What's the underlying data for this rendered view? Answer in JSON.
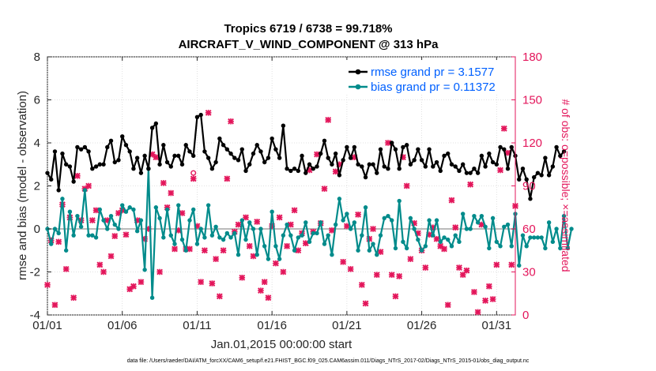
{
  "chart_data": {
    "type": "line",
    "title": "Tropics 6719 / 6738 = 99.718%",
    "subtitle": "AIRCRAFT_V_WIND_COMPONENT @ 313 hPa",
    "xlabel": "Jan.01,2015 00:00:00 start",
    "ylabel": "rmse and bias (model - observation)",
    "y2label": "# of obs: o=possible; ×=assimilated",
    "x_ticks": [
      "01/01",
      "01/06",
      "01/11",
      "01/16",
      "01/21",
      "01/26",
      "01/31"
    ],
    "x_tick_days": [
      0,
      5,
      10,
      15,
      20,
      25,
      30
    ],
    "xlim": [
      0,
      31.25
    ],
    "ylim": [
      -4,
      8
    ],
    "y_ticks": [
      "-4",
      "-2",
      "0",
      "2",
      "4",
      "6",
      "8"
    ],
    "y2lim": [
      0,
      180
    ],
    "y2_ticks": [
      "0",
      "30",
      "60",
      "90",
      "120",
      "150",
      "180"
    ],
    "step_days": 0.25,
    "zero_line": 0,
    "series": [
      {
        "name": "rmse grand pr = 3.1577",
        "axis": "left",
        "color": "#000000",
        "values": [
          2.6,
          2.3,
          3.6,
          1.8,
          3.5,
          3.0,
          2.9,
          2.2,
          3.8,
          3.7,
          3.8,
          3.6,
          2.8,
          2.9,
          3.0,
          3.0,
          3.8,
          4.1,
          3.1,
          3.2,
          4.3,
          3.9,
          3.6,
          2.8,
          3.3,
          2.6,
          3.4,
          2.8,
          4.7,
          4.9,
          3.0,
          3.9,
          3.1,
          2.9,
          3.4,
          3.4,
          3.0,
          3.9,
          3.6,
          3.4,
          5.2,
          5.3,
          3.6,
          3.3,
          2.8,
          3.1,
          4.2,
          3.9,
          3.7,
          3.5,
          3.3,
          3.2,
          3.7,
          2.7,
          3.0,
          3.5,
          3.9,
          3.6,
          3.1,
          3.3,
          4.2,
          3.7,
          3.3,
          4.8,
          2.8,
          2.7,
          2.8,
          2.7,
          3.4,
          2.6,
          3.0,
          2.8,
          2.9,
          3.5,
          4.1,
          3.3,
          3.0,
          3.5,
          2.5,
          3.2,
          3.8,
          3.3,
          3.8,
          3.0,
          2.9,
          2.4,
          3.0,
          3.0,
          2.6,
          3.7,
          2.9,
          2.8,
          4.0,
          3.7,
          2.8,
          3.8,
          3.9,
          3.0,
          3.2,
          3.7,
          3.2,
          2.9,
          3.7,
          2.9,
          3.1,
          2.7,
          3.4,
          3.5,
          3.0,
          2.9,
          2.7,
          3.0,
          2.6,
          2.6,
          2.8,
          2.6,
          3.4,
          2.9,
          3.5,
          3.1,
          3.0,
          3.8,
          3.7,
          2.8,
          3.8,
          3.4,
          2.3,
          2.8,
          2.3,
          1.4,
          2.4,
          2.6,
          2.5,
          3.3,
          2.5,
          2.9,
          3.8,
          3.4,
          3.6
        ]
      },
      {
        "name": "bias grand pr = 0.11372",
        "axis": "left",
        "color": "#008b8b",
        "values": [
          0.0,
          -0.7,
          0.0,
          -0.2,
          1.4,
          -1.0,
          0.8,
          -0.3,
          0.6,
          0.1,
          1.8,
          -0.3,
          -0.3,
          -0.4,
          0.9,
          0.4,
          0.0,
          0.6,
          0.2,
          0.0,
          1.1,
          0.8,
          1.0,
          0.9,
          -0.1,
          0.4,
          -1.9,
          2.8,
          -3.2,
          1.0,
          0.5,
          -0.4,
          0.9,
          -0.3,
          -0.7,
          1.1,
          -0.5,
          -1.0,
          0.4,
          0.9,
          -0.7,
          0.0,
          -0.4,
          1.1,
          -0.3,
          0.1,
          -0.4,
          -0.5,
          -0.2,
          -0.4,
          -0.2,
          -1.2,
          0.4,
          -0.5,
          0.3,
          0.0,
          -1.2,
          0.0,
          -0.8,
          -1.4,
          0.8,
          -0.8,
          -1.4,
          -0.3,
          0.2,
          -0.3,
          -1.0,
          -0.4,
          -0.3,
          0.3,
          -0.6,
          -0.2,
          -0.2,
          0.3,
          -0.7,
          -0.3,
          -1.2,
          0.2,
          1.4,
          0.4,
          0.7,
          0.0,
          0.3,
          -1.0,
          -0.3,
          1.0,
          -1.0,
          -0.7,
          -1.2,
          -0.3,
          0.5,
          0.6,
          0.4,
          -0.9,
          1.3,
          -0.6,
          -0.9,
          0.5,
          0.0,
          -0.5,
          -1.0,
          -0.8,
          0.4,
          -0.3,
          0.4,
          -0.6,
          -0.4,
          -0.5,
          -0.8,
          -0.3,
          -0.6,
          0.7,
          0.0,
          0.0,
          0.6,
          0.3,
          0.6,
          0.1,
          -0.9,
          0.5,
          -0.6,
          -0.8,
          0.1,
          0.2,
          -0.8,
          0.7,
          -1.7,
          -0.3,
          -0.8,
          -0.4,
          -0.4,
          -0.4,
          -0.4,
          -0.9,
          0.3,
          -0.6,
          0.0,
          -0.9,
          0.6,
          -0.9,
          0.0
        ]
      },
      {
        "name": "obs possible",
        "axis": "right",
        "color": "#e3165b",
        "marker": "o",
        "points": [
          [
            9.75,
            99
          ]
        ]
      },
      {
        "name": "obs assimilated",
        "axis": "right",
        "color": "#e3165b",
        "marker": "x",
        "points": [
          [
            0.0,
            21
          ],
          [
            0.25,
            52
          ],
          [
            0.5,
            7
          ],
          [
            0.75,
            51
          ],
          [
            1.0,
            77
          ],
          [
            1.25,
            32
          ],
          [
            1.5,
            68
          ],
          [
            1.75,
            12
          ],
          [
            2.0,
            97
          ],
          [
            2.25,
            66
          ],
          [
            2.5,
            88
          ],
          [
            2.75,
            90
          ],
          [
            3.0,
            66
          ],
          [
            3.25,
            73
          ],
          [
            3.5,
            35
          ],
          [
            3.75,
            30
          ],
          [
            4.0,
            66
          ],
          [
            4.25,
            41
          ],
          [
            4.5,
            55
          ],
          [
            4.75,
            71
          ],
          [
            5.0,
            73
          ],
          [
            5.25,
            56
          ],
          [
            5.5,
            18
          ],
          [
            5.75,
            20
          ],
          [
            6.0,
            66
          ],
          [
            6.25,
            23
          ],
          [
            6.5,
            53
          ],
          [
            6.75,
            60
          ],
          [
            7.0,
            112
          ],
          [
            7.25,
            110
          ],
          [
            7.5,
            30
          ],
          [
            7.75,
            92
          ],
          [
            8.0,
            75
          ],
          [
            8.25,
            85
          ],
          [
            8.5,
            46
          ],
          [
            8.75,
            59
          ],
          [
            9.0,
            71
          ],
          [
            9.25,
            46
          ],
          [
            9.5,
            46
          ],
          [
            9.75,
            95
          ],
          [
            10.0,
            62
          ],
          [
            10.25,
            23
          ],
          [
            10.5,
            45
          ],
          [
            10.75,
            141
          ],
          [
            11.0,
            22
          ],
          [
            11.25,
            39
          ],
          [
            11.5,
            13
          ],
          [
            11.75,
            45
          ],
          [
            12.0,
            95
          ],
          [
            12.25,
            135
          ],
          [
            12.5,
            58
          ],
          [
            12.75,
            63
          ],
          [
            13.0,
            26
          ],
          [
            13.25,
            68
          ],
          [
            13.5,
            48
          ],
          [
            13.75,
            41
          ],
          [
            14.0,
            65
          ],
          [
            14.25,
            17
          ],
          [
            14.5,
            23
          ],
          [
            14.75,
            12
          ],
          [
            15.0,
            62
          ],
          [
            15.25,
            36
          ],
          [
            15.5,
            68
          ],
          [
            15.75,
            30
          ],
          [
            16.0,
            48
          ],
          [
            16.25,
            63
          ],
          [
            16.5,
            73
          ],
          [
            16.75,
            45
          ],
          [
            17.0,
            57
          ],
          [
            17.25,
            50
          ],
          [
            17.5,
            101
          ],
          [
            17.75,
            58
          ],
          [
            18.0,
            112
          ],
          [
            18.25,
            64
          ],
          [
            18.5,
            88
          ],
          [
            18.75,
            136
          ],
          [
            19.0,
            59
          ],
          [
            19.25,
            100
          ],
          [
            19.5,
            105
          ],
          [
            19.75,
            37
          ],
          [
            20.0,
            62
          ],
          [
            20.25,
            32
          ],
          [
            20.5,
            110
          ],
          [
            20.75,
            70
          ],
          [
            21.0,
            21
          ],
          [
            21.25,
            8
          ],
          [
            21.5,
            53
          ],
          [
            21.75,
            60
          ],
          [
            22.0,
            28
          ],
          [
            22.25,
            44
          ],
          [
            22.75,
            120
          ],
          [
            23.0,
            28
          ],
          [
            23.25,
            13
          ],
          [
            23.5,
            27
          ],
          [
            23.75,
            110
          ],
          [
            24.0,
            90
          ],
          [
            24.25,
            39
          ],
          [
            24.5,
            64
          ],
          [
            24.75,
            57
          ],
          [
            25.0,
            45
          ],
          [
            25.25,
            33
          ],
          [
            25.5,
            56
          ],
          [
            25.75,
            61
          ],
          [
            26.0,
            53
          ],
          [
            26.25,
            48
          ],
          [
            26.5,
            46
          ],
          [
            26.75,
            7
          ],
          [
            27.0,
            80
          ],
          [
            27.25,
            61
          ],
          [
            27.5,
            33
          ],
          [
            27.75,
            28
          ],
          [
            28.0,
            31
          ],
          [
            28.25,
            91
          ],
          [
            28.5,
            16
          ],
          [
            28.75,
            2
          ],
          [
            29.0,
            63
          ],
          [
            29.25,
            10
          ],
          [
            29.5,
            20
          ],
          [
            29.75,
            11
          ],
          [
            30.0,
            35
          ],
          [
            30.25,
            101
          ],
          [
            30.5,
            130
          ],
          [
            30.75,
            113
          ],
          [
            31.0,
            35
          ],
          [
            31.25,
            76
          ]
        ]
      }
    ],
    "legend_position": "top-right",
    "footer": "data file: /Users/raeder/DAI/ATM_forcXX/CAM6_setup/f.e21.FHIST_BGC.f09_025.CAM6assim.011/Diags_NTrS_2017-02/Diags_NTrS_2015-01/obs_diag_output.nc"
  }
}
